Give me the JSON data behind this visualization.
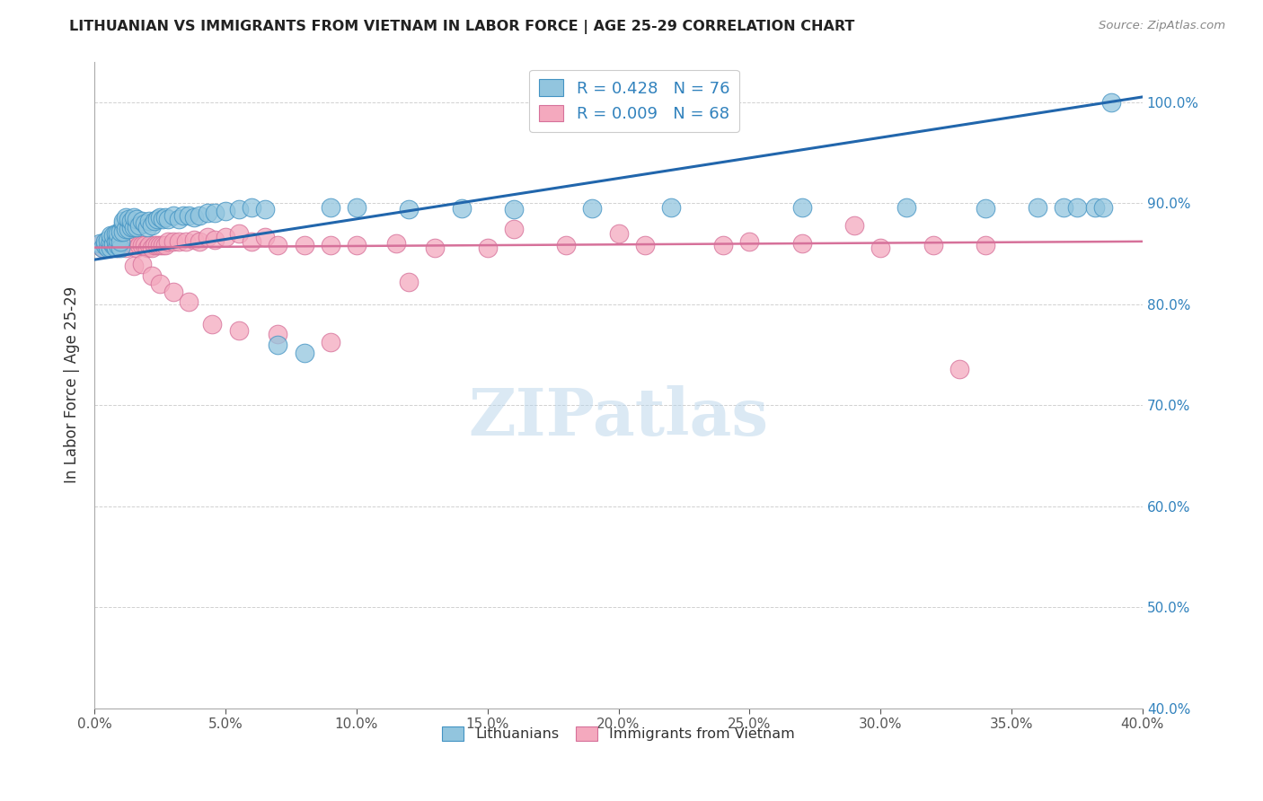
{
  "title": "LITHUANIAN VS IMMIGRANTS FROM VIETNAM IN LABOR FORCE | AGE 25-29 CORRELATION CHART",
  "source": "Source: ZipAtlas.com",
  "ylabel": "In Labor Force | Age 25-29",
  "xlim": [
    0.0,
    0.4
  ],
  "ylim": [
    0.4,
    1.04
  ],
  "xticks": [
    0.0,
    0.05,
    0.1,
    0.15,
    0.2,
    0.25,
    0.3,
    0.35,
    0.4
  ],
  "yticks": [
    0.4,
    0.5,
    0.6,
    0.7,
    0.8,
    0.9,
    1.0
  ],
  "ytick_labels": [
    "40.0%",
    "50.0%",
    "60.0%",
    "70.0%",
    "80.0%",
    "90.0%",
    "100.0%"
  ],
  "xtick_labels": [
    "0.0%",
    "5.0%",
    "10.0%",
    "15.0%",
    "20.0%",
    "25.0%",
    "30.0%",
    "35.0%",
    "40.0%"
  ],
  "blue_color": "#92c5de",
  "pink_color": "#f4a9be",
  "blue_edge_color": "#4393c3",
  "pink_edge_color": "#d6719a",
  "blue_line_color": "#2166ac",
  "pink_line_color": "#d6719a",
  "label_color": "#3182bd",
  "R_blue": 0.428,
  "N_blue": 76,
  "R_pink": 0.009,
  "N_pink": 68,
  "watermark": "ZIPatlas",
  "blue_scatter_x": [
    0.002,
    0.003,
    0.004,
    0.004,
    0.005,
    0.005,
    0.006,
    0.006,
    0.006,
    0.007,
    0.007,
    0.007,
    0.008,
    0.008,
    0.008,
    0.009,
    0.009,
    0.009,
    0.01,
    0.01,
    0.01,
    0.011,
    0.011,
    0.011,
    0.012,
    0.012,
    0.013,
    0.013,
    0.014,
    0.014,
    0.015,
    0.015,
    0.016,
    0.016,
    0.017,
    0.018,
    0.019,
    0.02,
    0.021,
    0.022,
    0.023,
    0.024,
    0.025,
    0.026,
    0.027,
    0.028,
    0.03,
    0.032,
    0.034,
    0.036,
    0.038,
    0.04,
    0.043,
    0.046,
    0.05,
    0.055,
    0.06,
    0.065,
    0.07,
    0.08,
    0.09,
    0.1,
    0.12,
    0.14,
    0.16,
    0.19,
    0.22,
    0.27,
    0.31,
    0.34,
    0.36,
    0.37,
    0.375,
    0.382,
    0.385,
    0.388
  ],
  "blue_scatter_y": [
    0.86,
    0.856,
    0.858,
    0.862,
    0.856,
    0.864,
    0.856,
    0.862,
    0.868,
    0.858,
    0.86,
    0.868,
    0.856,
    0.862,
    0.87,
    0.858,
    0.864,
    0.87,
    0.856,
    0.862,
    0.872,
    0.88,
    0.872,
    0.882,
    0.874,
    0.886,
    0.874,
    0.884,
    0.876,
    0.882,
    0.876,
    0.886,
    0.876,
    0.884,
    0.878,
    0.882,
    0.88,
    0.876,
    0.882,
    0.878,
    0.882,
    0.884,
    0.886,
    0.884,
    0.886,
    0.884,
    0.888,
    0.884,
    0.888,
    0.888,
    0.886,
    0.888,
    0.89,
    0.89,
    0.892,
    0.894,
    0.896,
    0.894,
    0.76,
    0.752,
    0.896,
    0.896,
    0.894,
    0.895,
    0.894,
    0.895,
    0.896,
    0.896,
    0.896,
    0.895,
    0.896,
    0.896,
    0.896,
    0.896,
    0.896,
    1.0
  ],
  "pink_scatter_x": [
    0.002,
    0.003,
    0.004,
    0.005,
    0.006,
    0.007,
    0.008,
    0.009,
    0.01,
    0.011,
    0.012,
    0.013,
    0.014,
    0.015,
    0.016,
    0.017,
    0.018,
    0.019,
    0.02,
    0.021,
    0.022,
    0.023,
    0.024,
    0.025,
    0.026,
    0.027,
    0.028,
    0.03,
    0.032,
    0.035,
    0.038,
    0.04,
    0.043,
    0.046,
    0.05,
    0.055,
    0.06,
    0.065,
    0.07,
    0.08,
    0.09,
    0.1,
    0.115,
    0.13,
    0.15,
    0.18,
    0.21,
    0.24,
    0.27,
    0.3,
    0.32,
    0.34,
    0.015,
    0.018,
    0.022,
    0.025,
    0.03,
    0.036,
    0.045,
    0.055,
    0.07,
    0.09,
    0.12,
    0.16,
    0.2,
    0.25,
    0.29,
    0.33
  ],
  "pink_scatter_y": [
    0.858,
    0.856,
    0.858,
    0.858,
    0.856,
    0.858,
    0.858,
    0.856,
    0.858,
    0.858,
    0.856,
    0.858,
    0.858,
    0.858,
    0.856,
    0.858,
    0.858,
    0.858,
    0.856,
    0.858,
    0.856,
    0.858,
    0.858,
    0.858,
    0.858,
    0.858,
    0.862,
    0.862,
    0.862,
    0.862,
    0.864,
    0.862,
    0.866,
    0.864,
    0.866,
    0.87,
    0.862,
    0.866,
    0.858,
    0.858,
    0.858,
    0.858,
    0.86,
    0.856,
    0.856,
    0.858,
    0.858,
    0.858,
    0.86,
    0.856,
    0.858,
    0.858,
    0.838,
    0.84,
    0.828,
    0.82,
    0.812,
    0.802,
    0.78,
    0.774,
    0.77,
    0.762,
    0.822,
    0.874,
    0.87,
    0.862,
    0.878,
    0.736
  ],
  "blue_trend_x": [
    0.0,
    0.4
  ],
  "blue_trend_y": [
    0.844,
    1.005
  ],
  "pink_trend_x": [
    0.0,
    0.4
  ],
  "pink_trend_y": [
    0.856,
    0.862
  ],
  "figsize": [
    14.06,
    8.92
  ],
  "dpi": 100
}
